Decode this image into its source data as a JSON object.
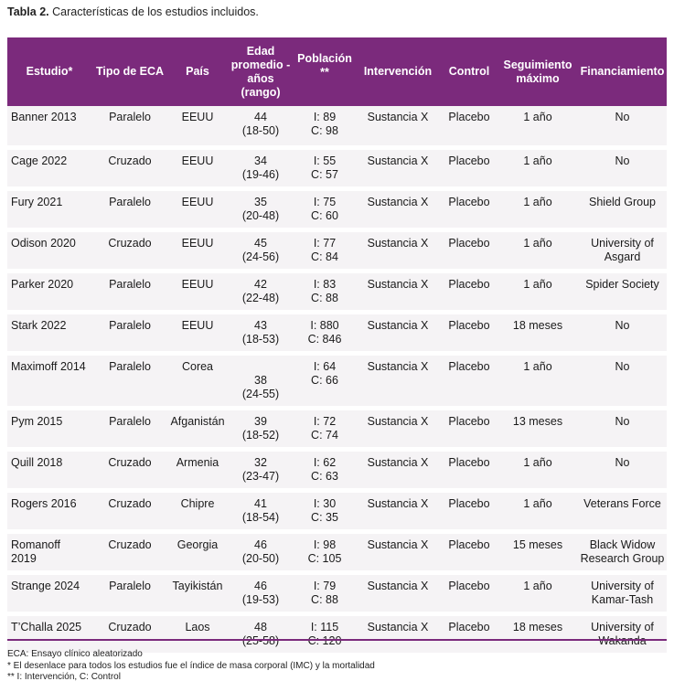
{
  "caption": {
    "label": "Tabla 2.",
    "text": " Características de los estudios incluidos."
  },
  "headers": [
    "Estudio*",
    "Tipo de ECA",
    "País",
    "Edad promedio - años (rango)",
    "Población **",
    "Intervención",
    "Control",
    "Seguimiento máximo",
    "Financiamiento"
  ],
  "rows": [
    {
      "estudio": "Banner 2013",
      "tipo": "Paralelo",
      "pais": "EEUU",
      "edad": "44",
      "rango": "(18-50)",
      "pob_i": "I: 89",
      "pob_c": "C: 98",
      "intervencion": "Sustancia X",
      "control": "Placebo",
      "seguimiento": "1 año",
      "fin1": "No",
      "fin2": ""
    },
    {
      "estudio": "Cage 2022",
      "tipo": "Cruzado",
      "pais": "EEUU",
      "edad": "34",
      "rango": "(19-46)",
      "pob_i": "I: 55",
      "pob_c": "C: 57",
      "intervencion": "Sustancia X",
      "control": "Placebo",
      "seguimiento": "1 año",
      "fin1": "No",
      "fin2": ""
    },
    {
      "estudio": "Fury 2021",
      "tipo": "Paralelo",
      "pais": "EEUU",
      "edad": "35",
      "rango": "(20-48)",
      "pob_i": "I: 75",
      "pob_c": "C: 60",
      "intervencion": "Sustancia X",
      "control": "Placebo",
      "seguimiento": "1 año",
      "fin1": "Shield Group",
      "fin2": ""
    },
    {
      "estudio": "Odison 2020",
      "tipo": "Cruzado",
      "pais": "EEUU",
      "edad": "45",
      "rango": "(24-56)",
      "pob_i": "I: 77",
      "pob_c": "C: 84",
      "intervencion": "Sustancia X",
      "control": "Placebo",
      "seguimiento": "1 año",
      "fin1": "University of",
      "fin2": "Asgard"
    },
    {
      "estudio": "Parker 2020",
      "tipo": "Paralelo",
      "pais": "EEUU",
      "edad": "42",
      "rango": "(22-48)",
      "pob_i": "I: 83",
      "pob_c": "C: 88",
      "intervencion": "Sustancia X",
      "control": "Placebo",
      "seguimiento": "1 año",
      "fin1": "Spider Society",
      "fin2": ""
    },
    {
      "estudio": "Stark 2022",
      "tipo": "Paralelo",
      "pais": "EEUU",
      "edad": "43",
      "rango": "(18-53)",
      "pob_i": "I: 880",
      "pob_c": "C: 846",
      "intervencion": "Sustancia X",
      "control": "Placebo",
      "seguimiento": "18 meses",
      "fin1": "No",
      "fin2": ""
    },
    {
      "estudio": "Maximoff 2014",
      "tipo": "Paralelo",
      "pais": "Corea",
      "edad": "38",
      "rango": "(24-55)",
      "pob_i": "I: 64",
      "pob_c": "C: 66",
      "intervencion": "Sustancia X",
      "control": "Placebo",
      "seguimiento": "1 año",
      "fin1": "No",
      "fin2": ""
    },
    {
      "estudio": "Pym 2015",
      "tipo": "Paralelo",
      "pais": "Afganistán",
      "edad": "39",
      "rango": "(18-52)",
      "pob_i": "I: 72",
      "pob_c": "C: 74",
      "intervencion": "Sustancia X",
      "control": "Placebo",
      "seguimiento": "13 meses",
      "fin1": "No",
      "fin2": ""
    },
    {
      "estudio": "Quill 2018",
      "tipo": "Cruzado",
      "pais": "Armenia",
      "edad": "32",
      "rango": "(23-47)",
      "pob_i": "I: 62",
      "pob_c": "C: 63",
      "intervencion": "Sustancia X",
      "control": "Placebo",
      "seguimiento": "1 año",
      "fin1": "No",
      "fin2": ""
    },
    {
      "estudio": "Rogers 2016",
      "tipo": "Cruzado",
      "pais": "Chipre",
      "edad": "41",
      "rango": "(18-54)",
      "pob_i": "I: 30",
      "pob_c": "C: 35",
      "intervencion": "Sustancia X",
      "control": "Placebo",
      "seguimiento": "1 año",
      "fin1": "Veterans Force",
      "fin2": ""
    },
    {
      "estudio": "Romanoff 2019",
      "tipo": "Cruzado",
      "pais": "Georgia",
      "edad": "46",
      "rango": "(20-50)",
      "pob_i": "I: 98",
      "pob_c": "C: 105",
      "intervencion": "Sustancia X",
      "control": "Placebo",
      "seguimiento": "15 meses",
      "fin1": "Black Widow",
      "fin2": "Research Group"
    },
    {
      "estudio": "Strange 2024",
      "tipo": "Paralelo",
      "pais": "Tayikistán",
      "edad": "46",
      "rango": "(19-53)",
      "pob_i": "I: 79",
      "pob_c": "C: 88",
      "intervencion": "Sustancia X",
      "control": "Placebo",
      "seguimiento": "1 año",
      "fin1": "University of",
      "fin2": "Kamar-Tash"
    },
    {
      "estudio": "T’Challa 2025",
      "tipo": "Cruzado",
      "pais": "Laos",
      "edad": "48",
      "rango": "(25-58)",
      "pob_i": "I: 115",
      "pob_c": "C: 120",
      "intervencion": "Sustancia X",
      "control": "Placebo",
      "seguimiento": "18 meses",
      "fin1": "University of",
      "fin2": "Wakanda"
    }
  ],
  "notes": [
    "ECA: Ensayo clínico aleatorizado",
    "* El desenlace para todos los estudios fue el índice de masa corporal (IMC) y la mortalidad",
    "** I: Intervención, C: Control"
  ]
}
